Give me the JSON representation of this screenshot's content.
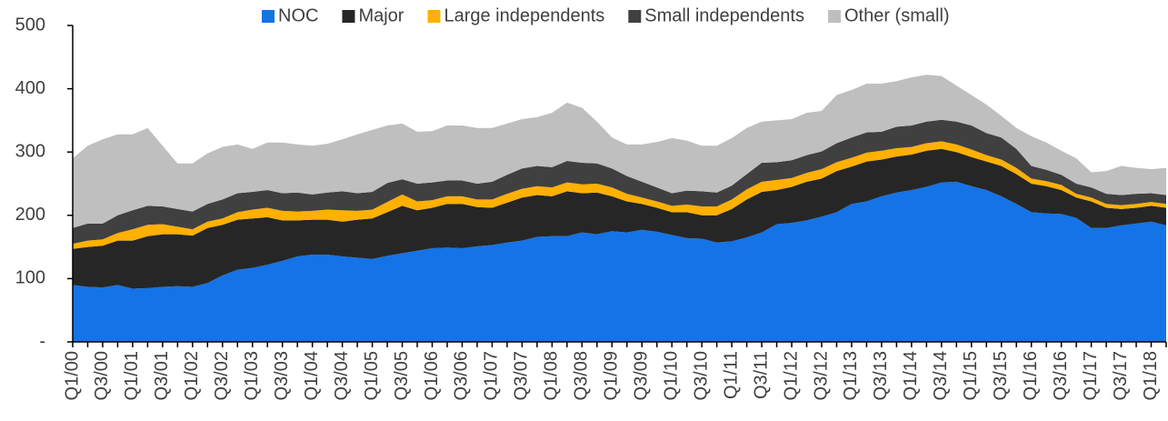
{
  "chart_data": {
    "type": "stacked_area",
    "categories": [
      "Q1/00",
      null,
      "Q3/00",
      null,
      "Q1/01",
      null,
      "Q3/01",
      null,
      "Q1/02",
      null,
      "Q3/02",
      null,
      "Q1/03",
      null,
      "Q3/03",
      null,
      "Q1/04",
      null,
      "Q3/04",
      null,
      "Q1/05",
      null,
      "Q3/05",
      null,
      "Q1/06",
      null,
      "Q3/06",
      null,
      "Q1/07",
      null,
      "Q3/07",
      null,
      "Q1/08",
      null,
      "Q3/08",
      null,
      "Q1/09",
      null,
      "Q3/09",
      null,
      "Q1/10",
      null,
      "Q3/10",
      null,
      "Q1/11",
      null,
      "Q3/11",
      null,
      "Q1/12",
      null,
      "Q3/12",
      null,
      "Q1/13",
      null,
      "Q3/13",
      null,
      "Q1/14",
      null,
      "Q3/14",
      null,
      "Q1/15",
      null,
      "Q3/15",
      null,
      "Q1/16",
      null,
      "Q3/16",
      null,
      "Q1/17",
      null,
      "Q3/17",
      null,
      "Q1/18",
      null
    ],
    "series": [
      {
        "name": "NOC",
        "color": "#1473e6",
        "values": [
          90,
          87,
          86,
          90,
          84,
          85,
          87,
          88,
          87,
          93,
          105,
          114,
          117,
          122,
          128,
          135,
          138,
          138,
          135,
          133,
          131,
          136,
          140,
          144,
          148,
          149,
          148,
          151,
          153,
          157,
          160,
          166,
          167,
          167,
          173,
          170,
          175,
          173,
          177,
          174,
          169,
          164,
          163,
          157,
          159,
          165,
          173,
          186,
          188,
          192,
          198,
          205,
          218,
          222,
          230,
          236,
          240,
          245,
          252,
          253,
          246,
          240,
          230,
          218,
          205,
          203,
          202,
          196,
          180,
          180,
          184,
          187,
          190,
          184
        ]
      },
      {
        "name": "Major",
        "color": "#262626",
        "values": [
          57,
          63,
          66,
          70,
          76,
          82,
          83,
          82,
          81,
          87,
          80,
          79,
          78,
          75,
          64,
          57,
          55,
          55,
          55,
          60,
          64,
          69,
          75,
          64,
          64,
          69,
          70,
          62,
          59,
          63,
          68,
          66,
          63,
          71,
          62,
          66,
          55,
          49,
          41,
          38,
          36,
          41,
          37,
          43,
          51,
          60,
          64,
          54,
          57,
          61,
          60,
          65,
          59,
          63,
          58,
          57,
          56,
          57,
          53,
          47,
          46,
          45,
          48,
          47,
          45,
          43,
          38,
          32,
          42,
          32,
          26,
          25,
          25,
          28
        ]
      },
      {
        "name": "Large independents",
        "color": "#ffb000",
        "values": [
          8,
          10,
          10,
          12,
          18,
          18,
          16,
          12,
          10,
          10,
          10,
          12,
          14,
          15,
          15,
          14,
          14,
          16,
          18,
          14,
          14,
          16,
          18,
          14,
          12,
          12,
          12,
          12,
          13,
          14,
          14,
          14,
          14,
          14,
          14,
          14,
          14,
          12,
          10,
          10,
          10,
          12,
          14,
          14,
          15,
          16,
          16,
          16,
          14,
          14,
          15,
          14,
          14,
          14,
          14,
          13,
          12,
          12,
          12,
          12,
          12,
          10,
          10,
          10,
          8,
          8,
          8,
          6,
          6,
          6,
          6,
          6,
          6,
          6
        ]
      },
      {
        "name": "Small independents",
        "color": "#404040",
        "values": [
          25,
          27,
          25,
          28,
          30,
          30,
          28,
          28,
          28,
          28,
          30,
          30,
          28,
          28,
          28,
          30,
          26,
          27,
          30,
          28,
          28,
          30,
          24,
          28,
          28,
          25,
          25,
          25,
          28,
          30,
          32,
          32,
          32,
          34,
          34,
          32,
          30,
          28,
          25,
          22,
          20,
          22,
          24,
          22,
          22,
          24,
          30,
          28,
          28,
          28,
          28,
          30,
          32,
          32,
          30,
          34,
          34,
          34,
          34,
          36,
          38,
          35,
          35,
          30,
          20,
          18,
          16,
          16,
          16,
          16,
          16,
          16,
          14,
          14
        ]
      },
      {
        "name": "Other (small)",
        "color": "#bfbfbf",
        "values": [
          110,
          123,
          133,
          128,
          120,
          123,
          96,
          72,
          76,
          80,
          83,
          77,
          68,
          75,
          80,
          76,
          77,
          77,
          82,
          93,
          98,
          91,
          88,
          82,
          81,
          87,
          87,
          88,
          85,
          81,
          78,
          77,
          86,
          92,
          87,
          66,
          49,
          50,
          59,
          72,
          87,
          79,
          72,
          74,
          75,
          73,
          65,
          66,
          65,
          67,
          64,
          76,
          75,
          77,
          76,
          72,
          76,
          74,
          69,
          57,
          48,
          45,
          34,
          33,
          47,
          43,
          38,
          40,
          24,
          36,
          46,
          41,
          38,
          43
        ]
      }
    ],
    "ylim": [
      0,
      500
    ],
    "yticks": [
      {
        "value": 0,
        "label": "-"
      },
      100,
      200,
      300,
      400,
      500
    ],
    "legend": "top"
  }
}
